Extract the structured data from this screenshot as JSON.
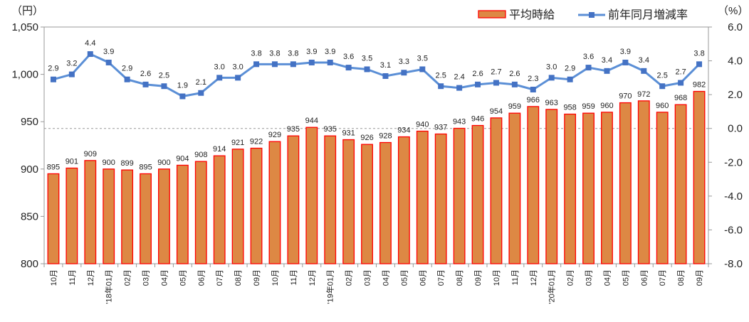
{
  "chart_data": {
    "type": "bar+line",
    "left_unit": "（円）",
    "right_unit": "（%）",
    "categories": [
      "10月",
      "11月",
      "12月",
      "'18年01月",
      "02月",
      "03月",
      "04月",
      "05月",
      "06月",
      "07月",
      "08月",
      "09月",
      "10月",
      "11月",
      "12月",
      "'19年01月",
      "02月",
      "03月",
      "04月",
      "05月",
      "06月",
      "07月",
      "08月",
      "09月",
      "10月",
      "11月",
      "12月",
      "'20年01月",
      "02月",
      "03月",
      "04月",
      "05月",
      "06月",
      "07月",
      "08月",
      "09月"
    ],
    "series": [
      {
        "name": "平均時給",
        "type": "bar",
        "axis": "left",
        "color": "#DD8844",
        "edge": "#FF0000",
        "values": [
          895,
          901,
          909,
          900,
          899,
          895,
          900,
          904,
          908,
          914,
          921,
          922,
          929,
          935,
          944,
          935,
          931,
          926,
          928,
          934,
          940,
          937,
          943,
          946,
          954,
          959,
          966,
          963,
          958,
          959,
          960,
          970,
          972,
          960,
          968,
          982
        ]
      },
      {
        "name": "前年同月増減率",
        "type": "line",
        "axis": "right",
        "color": "#5B8FD6",
        "marker": "#4472C4",
        "values": [
          2.9,
          3.2,
          4.4,
          3.9,
          2.9,
          2.6,
          2.5,
          1.9,
          2.1,
          3.0,
          3.0,
          3.8,
          3.8,
          3.8,
          3.9,
          3.9,
          3.6,
          3.5,
          3.1,
          3.3,
          3.5,
          2.5,
          2.4,
          2.6,
          2.7,
          2.6,
          2.3,
          3.0,
          2.9,
          3.6,
          3.4,
          3.9,
          3.4,
          2.5,
          2.7,
          3.8
        ]
      }
    ],
    "ylim_left": [
      800,
      1050
    ],
    "yticks_left": [
      "800",
      "850",
      "900",
      "950",
      "1,000",
      "1,050"
    ],
    "ylim_right": [
      -8,
      6
    ],
    "yticks_right": [
      "-8.0",
      "-6.0",
      "-4.0",
      "-2.0",
      "0.0",
      "2.0",
      "4.0",
      "6.0"
    ],
    "reference_line_right": 0,
    "legend": "top-right",
    "grid": false
  }
}
